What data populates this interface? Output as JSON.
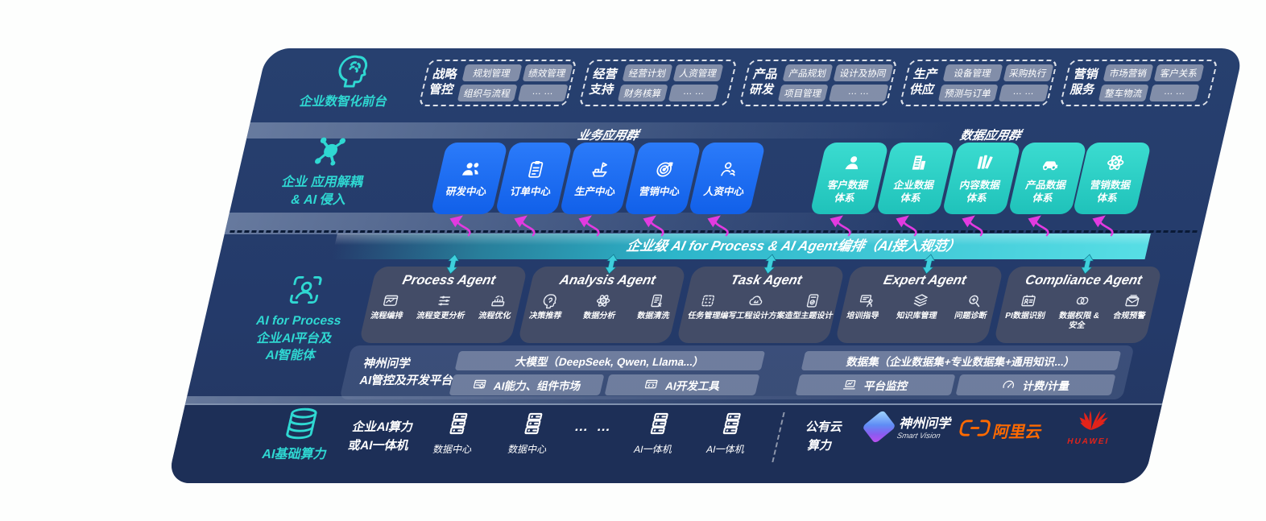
{
  "colors": {
    "accent_teal": "#2fd8d2",
    "box_blue": "#1668f2",
    "box_teal": "#2ed3c4",
    "bus_teal": "#3ecfdc",
    "arrow_magenta": "#e23ae0",
    "panel_navy": "#243a6a",
    "aliyun_orange": "#ff6a00",
    "huawei_red": "#e2231a"
  },
  "front_office": {
    "label": "企业数智化前台",
    "icon": "brain-icon",
    "groups": [
      {
        "name": "战略\n管控",
        "items": [
          "规划管理",
          "绩效管理",
          "组织与流程",
          "… …"
        ]
      },
      {
        "name": "经营\n支持",
        "items": [
          "经营计划",
          "人资管理",
          "财务核算",
          "… …"
        ]
      },
      {
        "name": "产品\n研发",
        "items": [
          "产品规划",
          "设计及协同",
          "项目管理",
          "… …"
        ]
      },
      {
        "name": "生产\n供应",
        "items": [
          "设备管理",
          "采购执行",
          "预测与订单",
          "… …"
        ]
      },
      {
        "name": "营销\n服务",
        "items": [
          "市场营销",
          "客户关系",
          "整车物流",
          "… …"
        ]
      }
    ]
  },
  "app_layer": {
    "label": "企业 应用解耦\n& AI 侵入",
    "icon": "decouple-icon",
    "business": {
      "header": "业务应用群",
      "boxes": [
        {
          "icon": "team-icon",
          "label": "研发中心"
        },
        {
          "icon": "clipboard-icon",
          "label": "订单中心"
        },
        {
          "icon": "factory-icon",
          "label": "生产中心"
        },
        {
          "icon": "target-icon",
          "label": "营销中心"
        },
        {
          "icon": "person-signal-icon",
          "label": "人资中心"
        }
      ]
    },
    "data": {
      "header": "数据应用群",
      "boxes": [
        {
          "icon": "user-icon",
          "label": "客户数据\n体系"
        },
        {
          "icon": "building-icon",
          "label": "企业数据\n体系"
        },
        {
          "icon": "content-icon",
          "label": "内容数据\n体系"
        },
        {
          "icon": "car-icon",
          "label": "产品数据\n体系"
        },
        {
          "icon": "atom-icon",
          "label": "营销数据\n体系"
        }
      ]
    }
  },
  "ai_bus": {
    "title": "企业级 AI for Process & AI Agent编排（AI接入规范）"
  },
  "ai_layer": {
    "label": "AI for Process\n企业AI平台及\nAI智能体",
    "icon": "ai-scan-icon",
    "agents": [
      {
        "title": "Process Agent",
        "items": [
          {
            "icon": "flow-icon",
            "label": "流程编排"
          },
          {
            "icon": "change-icon",
            "label": "流程变更分析"
          },
          {
            "icon": "optimize-icon",
            "label": "流程优化"
          }
        ]
      },
      {
        "title": "Analysis Agent",
        "items": [
          {
            "icon": "decision-icon",
            "label": "决策推荐"
          },
          {
            "icon": "atom-icon",
            "label": "数据分析"
          },
          {
            "icon": "clean-icon",
            "label": "数据清洗"
          }
        ]
      },
      {
        "title": "Task Agent",
        "items": [
          {
            "icon": "task-icon",
            "label": "任务管理"
          },
          {
            "icon": "cloud-icon",
            "label": "编写工程设计方案"
          },
          {
            "icon": "design-icon",
            "label": "造型主题设计"
          }
        ]
      },
      {
        "title": "Expert Agent",
        "items": [
          {
            "icon": "training-icon",
            "label": "培训指导"
          },
          {
            "icon": "knowledge-icon",
            "label": "知识库管理"
          },
          {
            "icon": "diagnose-icon",
            "label": "问题诊断"
          }
        ]
      },
      {
        "title": "Compliance Agent",
        "items": [
          {
            "icon": "pi-icon",
            "label": "PI数据识别"
          },
          {
            "icon": "permission-icon",
            "label": "数据权限 &\n安全"
          },
          {
            "icon": "alert-icon",
            "label": "合规预警"
          }
        ]
      }
    ],
    "platform": {
      "label": "神州问学\nAI管控及开发平台",
      "model_bar": "大模型（DeepSeek, Qwen, Llama...）",
      "model_cells": [
        {
          "icon": "components-icon",
          "label": "AI能力、组件市场"
        },
        {
          "icon": "devtools-icon",
          "label": "AI开发工具"
        }
      ],
      "data_bar": "数据集（企业数据集+专业数据集+通用知识...）",
      "data_cells": [
        {
          "icon": "monitor-icon",
          "label": "平台监控"
        },
        {
          "icon": "gauge-icon",
          "label": "计费/计量"
        }
      ]
    }
  },
  "compute": {
    "label": "AI基础算力",
    "icon": "database-icon",
    "items": [
      {
        "kind": "text",
        "label": "企业AI算力\n或AI一体机"
      },
      {
        "kind": "server",
        "label": "数据中心"
      },
      {
        "kind": "server",
        "label": "数据中心"
      },
      {
        "kind": "ellipsis",
        "label": "… …"
      },
      {
        "kind": "server",
        "label": "AI一体机"
      },
      {
        "kind": "server",
        "label": "AI一体机"
      },
      {
        "kind": "divider",
        "label": ""
      },
      {
        "kind": "text",
        "label": "公有云\n算力"
      },
      {
        "kind": "logo-smartvision",
        "label": "神州问学",
        "sub": "Smart Vision"
      },
      {
        "kind": "logo-aliyun",
        "label": "阿里云"
      },
      {
        "kind": "logo-huawei",
        "label": "HUAWEI"
      }
    ]
  }
}
